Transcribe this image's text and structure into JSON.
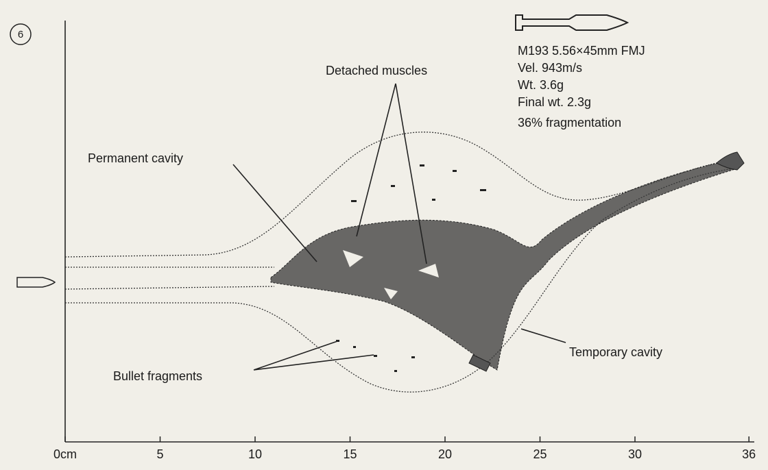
{
  "figure_number": "6",
  "cartridge": {
    "lines": [
      "M193 5.56×45mm FMJ",
      "Vel. 943m/s",
      "Wt. 3.6g",
      "Final wt. 2.3g",
      "36% fragmentation"
    ]
  },
  "labels": {
    "detached_muscles": "Detached muscles",
    "permanent_cavity": "Permanent cavity",
    "temporary_cavity": "Temporary cavity",
    "bullet_fragments": "Bullet fragments"
  },
  "axis": {
    "ticks": [
      {
        "value": 0,
        "label": "0cm"
      },
      5,
      10,
      15,
      20,
      25,
      30,
      36
    ]
  }
}
